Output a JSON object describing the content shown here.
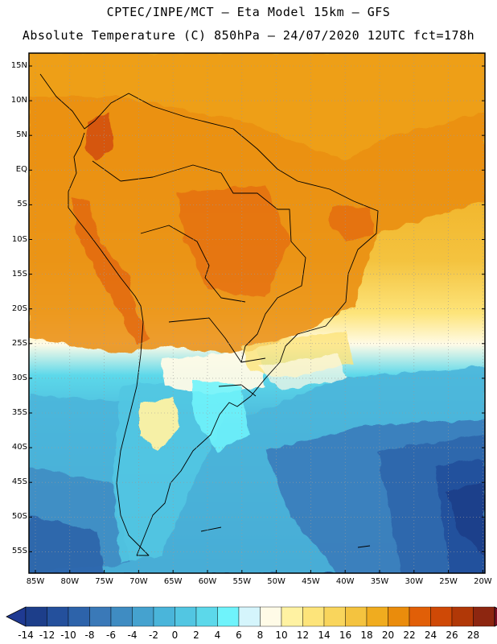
{
  "header": {
    "line1": "CPTEC/INPE/MCT –  Eta Model 15km – GFS",
    "line2": "Absolute Temperature (C) 850hPa – 24/07/2020 12UTC fct=178h"
  },
  "map": {
    "lat_labels": [
      "15N",
      "10N",
      "5N",
      "EQ",
      "5S",
      "10S",
      "15S",
      "20S",
      "25S",
      "30S",
      "35S",
      "40S",
      "45S",
      "50S",
      "55S"
    ],
    "lon_labels": [
      "85W",
      "80W",
      "75W",
      "70W",
      "65W",
      "60W",
      "55W",
      "50W",
      "45W",
      "40W",
      "35W",
      "30W",
      "25W",
      "20W"
    ],
    "land_outline_color": "#000000"
  },
  "colorbar": {
    "labels": [
      "-14",
      "-12",
      "-10",
      "-8",
      "-6",
      "-4",
      "-2",
      "0",
      "2",
      "4",
      "6",
      "8",
      "10",
      "12",
      "14",
      "16",
      "18",
      "20",
      "22",
      "24",
      "26",
      "28"
    ],
    "colors": [
      "#1d3e8a",
      "#24509c",
      "#2d63aa",
      "#3a79b8",
      "#3f8cc2",
      "#45a2cf",
      "#4ab5da",
      "#52c6e2",
      "#5cd8ea",
      "#6ff3fb",
      "#d5f5fc",
      "#fffbe7",
      "#fff2a2",
      "#fde47a",
      "#f9d55c",
      "#f4c33f",
      "#f0ac1f",
      "#ea8c0c",
      "#e15f07",
      "#cf4906",
      "#b13807",
      "#8d2610"
    ],
    "under_color": "#1f3a92",
    "over_color": "#7b1026"
  }
}
